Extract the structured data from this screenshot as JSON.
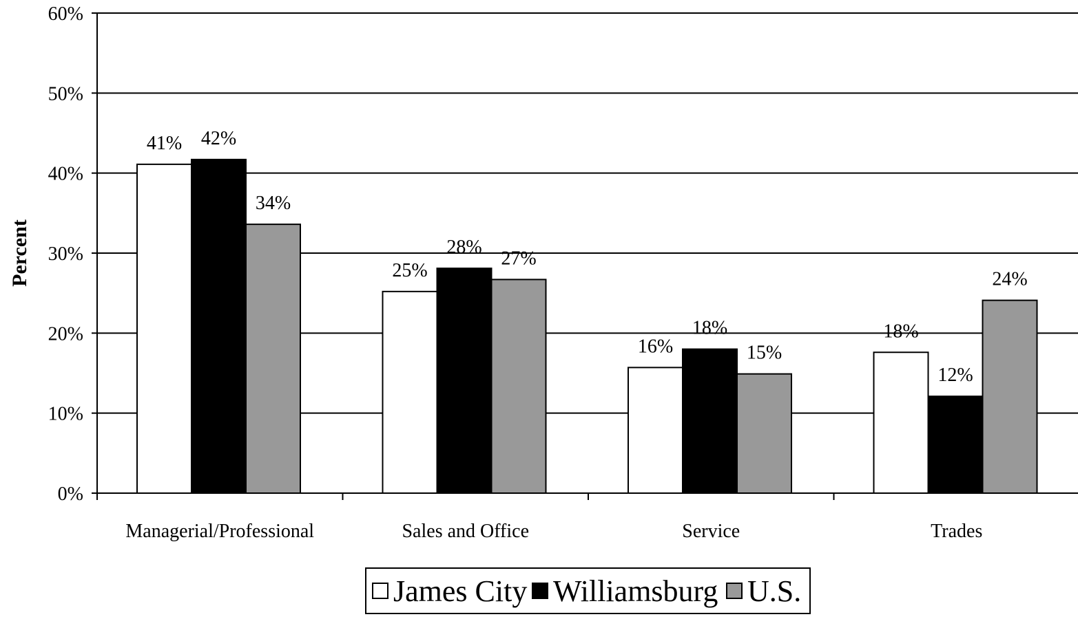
{
  "chart_data": {
    "type": "bar",
    "ylabel": "Percent",
    "xlabel": "",
    "ylim": [
      0,
      60
    ],
    "yticks": [
      "0%",
      "10%",
      "20%",
      "30%",
      "40%",
      "50%",
      "60%"
    ],
    "ytick_values": [
      0,
      10,
      20,
      30,
      40,
      50,
      60
    ],
    "grid": true,
    "legend_position": "bottom-center",
    "categories": [
      "Managerial/Professional",
      "Sales and Office",
      "Service",
      "Trades"
    ],
    "series": [
      {
        "name": "James City",
        "color": "#ffffff",
        "values": [
          41.1,
          25.2,
          15.7,
          17.6
        ],
        "labels": [
          "41%",
          "25%",
          "16%",
          "18%"
        ]
      },
      {
        "name": "Williamsburg",
        "color": "#000000",
        "values": [
          41.7,
          28.1,
          18.0,
          12.1
        ],
        "labels": [
          "42%",
          "28%",
          "18%",
          "12%"
        ]
      },
      {
        "name": "U.S.",
        "color": "#999999",
        "values": [
          33.6,
          26.7,
          14.9,
          24.1
        ],
        "labels": [
          "34%",
          "27%",
          "15%",
          "24%"
        ]
      }
    ]
  }
}
